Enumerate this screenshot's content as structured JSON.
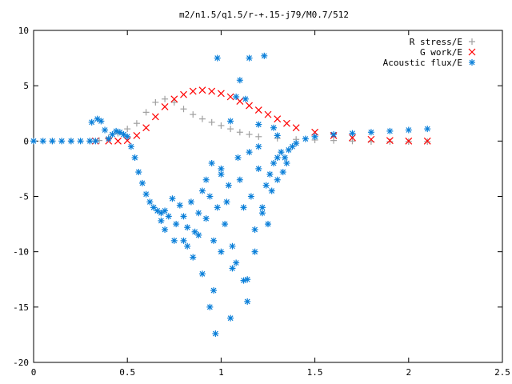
{
  "chart_data": {
    "type": "scatter",
    "title": "m2/n1.5/q1.5/r-+.15-j79/M0.7/512",
    "xlabel": "",
    "ylabel": "",
    "xlim": [
      0,
      2.5
    ],
    "ylim": [
      -20,
      10
    ],
    "x_ticks": [
      "0",
      "0.5",
      "1",
      "1.5",
      "2",
      "2.5"
    ],
    "y_ticks": [
      "10",
      "5",
      "0",
      "-5",
      "-10",
      "-15",
      "-20"
    ],
    "legend_position": "top-right",
    "series": [
      {
        "name": "R stress/E",
        "marker": "plus",
        "color": "#a0a0a0",
        "points": [
          [
            0,
            0
          ],
          [
            0.1,
            0
          ],
          [
            0.2,
            0
          ],
          [
            0.3,
            0
          ],
          [
            0.35,
            0.05
          ],
          [
            0.4,
            0.3
          ],
          [
            0.45,
            0.7
          ],
          [
            0.5,
            1.1
          ],
          [
            0.55,
            1.6
          ],
          [
            0.6,
            2.6
          ],
          [
            0.65,
            3.5
          ],
          [
            0.7,
            3.8
          ],
          [
            0.75,
            3.5
          ],
          [
            0.8,
            2.9
          ],
          [
            0.85,
            2.4
          ],
          [
            0.9,
            2.0
          ],
          [
            0.95,
            1.7
          ],
          [
            1.0,
            1.4
          ],
          [
            1.05,
            1.1
          ],
          [
            1.1,
            0.8
          ],
          [
            1.15,
            0.6
          ],
          [
            1.2,
            0.4
          ],
          [
            1.3,
            0.25
          ],
          [
            1.4,
            0.15
          ],
          [
            1.5,
            0.1
          ],
          [
            1.6,
            0.05
          ],
          [
            1.7,
            0.0
          ],
          [
            1.8,
            -0.05
          ],
          [
            1.9,
            -0.05
          ],
          [
            2.0,
            -0.05
          ],
          [
            2.1,
            -0.05
          ]
        ]
      },
      {
        "name": "G work/E",
        "marker": "cross",
        "color": "#ff0000",
        "points": [
          [
            0.33,
            0
          ],
          [
            0.4,
            0
          ],
          [
            0.45,
            0
          ],
          [
            0.5,
            0.05
          ],
          [
            0.55,
            0.5
          ],
          [
            0.6,
            1.2
          ],
          [
            0.65,
            2.2
          ],
          [
            0.7,
            3.1
          ],
          [
            0.75,
            3.8
          ],
          [
            0.8,
            4.2
          ],
          [
            0.85,
            4.5
          ],
          [
            0.9,
            4.6
          ],
          [
            0.95,
            4.5
          ],
          [
            1.0,
            4.3
          ],
          [
            1.05,
            4.0
          ],
          [
            1.1,
            3.6
          ],
          [
            1.15,
            3.2
          ],
          [
            1.2,
            2.8
          ],
          [
            1.25,
            2.4
          ],
          [
            1.3,
            2.0
          ],
          [
            1.35,
            1.6
          ],
          [
            1.4,
            1.2
          ],
          [
            1.5,
            0.8
          ],
          [
            1.6,
            0.5
          ],
          [
            1.7,
            0.3
          ],
          [
            1.8,
            0.15
          ],
          [
            1.9,
            0.05
          ],
          [
            2.0,
            0.0
          ],
          [
            2.1,
            0.0
          ]
        ]
      },
      {
        "name": "Acoustic flux/E",
        "marker": "star",
        "color": "#0a7fd9",
        "points": [
          [
            0,
            0
          ],
          [
            0.05,
            0
          ],
          [
            0.1,
            0
          ],
          [
            0.15,
            0
          ],
          [
            0.2,
            0
          ],
          [
            0.25,
            0
          ],
          [
            0.3,
            0
          ],
          [
            0.33,
            0
          ],
          [
            0.31,
            1.7
          ],
          [
            0.34,
            2.0
          ],
          [
            0.36,
            1.8
          ],
          [
            0.38,
            1.0
          ],
          [
            0.4,
            0.2
          ],
          [
            0.42,
            0.6
          ],
          [
            0.44,
            0.9
          ],
          [
            0.46,
            0.8
          ],
          [
            0.48,
            0.6
          ],
          [
            0.5,
            0.4
          ],
          [
            0.52,
            -0.5
          ],
          [
            0.54,
            -1.5
          ],
          [
            0.56,
            -2.8
          ],
          [
            0.58,
            -3.8
          ],
          [
            0.6,
            -4.8
          ],
          [
            0.62,
            -5.5
          ],
          [
            0.64,
            -6.0
          ],
          [
            0.66,
            -6.3
          ],
          [
            0.68,
            -6.5
          ],
          [
            0.7,
            -6.3
          ],
          [
            0.72,
            -6.8
          ],
          [
            0.74,
            -5.2
          ],
          [
            0.76,
            -7.5
          ],
          [
            0.78,
            -5.8
          ],
          [
            0.8,
            -6.8
          ],
          [
            0.82,
            -7.8
          ],
          [
            0.84,
            -5.5
          ],
          [
            0.86,
            -8.2
          ],
          [
            0.88,
            -6.5
          ],
          [
            0.9,
            -4.5
          ],
          [
            0.92,
            -3.5
          ],
          [
            0.94,
            -5.0
          ],
          [
            0.96,
            -9.0
          ],
          [
            0.98,
            -6.0
          ],
          [
            1.0,
            -2.5
          ],
          [
            1.02,
            -7.5
          ],
          [
            1.04,
            -4.0
          ],
          [
            1.06,
            -9.5
          ],
          [
            1.08,
            -11.0
          ],
          [
            1.1,
            -3.5
          ],
          [
            1.12,
            -6.0
          ],
          [
            1.14,
            -12.5
          ],
          [
            1.16,
            -5.0
          ],
          [
            1.18,
            -8.0
          ],
          [
            1.2,
            -2.5
          ],
          [
            1.22,
            -6.5
          ],
          [
            1.24,
            -4.0
          ],
          [
            1.26,
            -3.0
          ],
          [
            1.28,
            -2.0
          ],
          [
            1.3,
            -1.5
          ],
          [
            1.32,
            -1.0
          ],
          [
            1.34,
            -1.5
          ],
          [
            1.36,
            -0.8
          ],
          [
            1.38,
            -0.5
          ],
          [
            1.4,
            -0.2
          ],
          [
            1.45,
            0.2
          ],
          [
            1.5,
            0.4
          ],
          [
            1.6,
            0.6
          ],
          [
            1.7,
            0.7
          ],
          [
            1.8,
            0.8
          ],
          [
            1.9,
            0.9
          ],
          [
            2.0,
            1.0
          ],
          [
            2.1,
            1.1
          ],
          [
            0.98,
            7.5
          ],
          [
            1.1,
            5.5
          ],
          [
            1.15,
            7.5
          ],
          [
            1.23,
            7.7
          ],
          [
            1.08,
            4.0
          ],
          [
            1.13,
            3.8
          ],
          [
            1.05,
            1.8
          ],
          [
            1.2,
            1.5
          ],
          [
            0.85,
            -10.5
          ],
          [
            0.9,
            -12.0
          ],
          [
            0.8,
            -9.0
          ],
          [
            0.94,
            -15.0
          ],
          [
            0.97,
            -17.4
          ],
          [
            1.05,
            -16.0
          ],
          [
            1.14,
            -14.5
          ],
          [
            1.12,
            -12.6
          ],
          [
            1.0,
            -10.0
          ],
          [
            1.06,
            -11.5
          ],
          [
            0.96,
            -13.5
          ],
          [
            0.75,
            -9.0
          ],
          [
            0.7,
            -8.0
          ],
          [
            0.68,
            -7.2
          ],
          [
            0.82,
            -9.5
          ],
          [
            0.92,
            -7.0
          ],
          [
            1.18,
            -10.0
          ],
          [
            1.25,
            -7.5
          ],
          [
            1.3,
            -3.5
          ],
          [
            1.27,
            -4.5
          ],
          [
            1.22,
            -6.0
          ],
          [
            1.33,
            -2.8
          ],
          [
            1.35,
            -2.0
          ],
          [
            0.88,
            -8.5
          ],
          [
            0.95,
            -2.0
          ],
          [
            1.0,
            -3.0
          ],
          [
            1.03,
            -5.5
          ],
          [
            1.09,
            -1.5
          ],
          [
            1.15,
            -1.0
          ],
          [
            1.2,
            -0.5
          ],
          [
            1.28,
            1.2
          ],
          [
            1.3,
            0.5
          ]
        ]
      }
    ]
  }
}
